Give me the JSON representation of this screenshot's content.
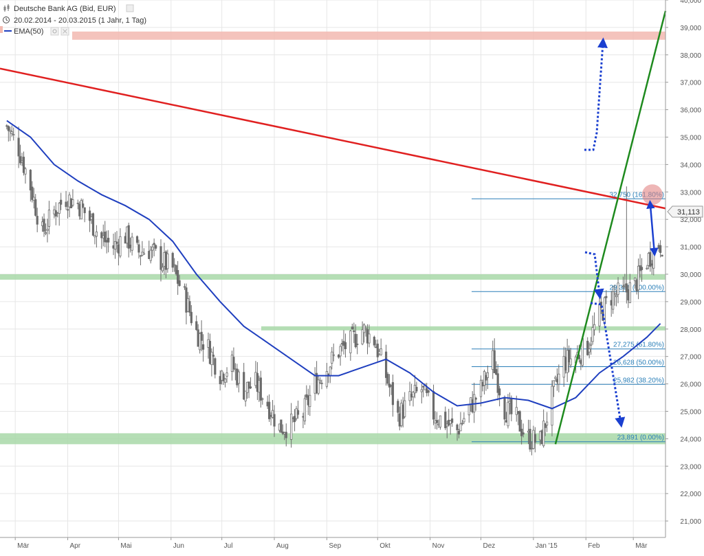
{
  "header": {
    "instrument": "Deutsche Bank AG (Bid, EUR)",
    "range": "20.02.2014 - 20.03.2015 (1 Jahr, 1 Tag)",
    "indicator": "EMA(50)"
  },
  "colors": {
    "candle": "#6b6b6b",
    "ema": "#1f3fbf",
    "resistance": "#e02020",
    "trend": "#1e8a1e",
    "support_zone": "#a8d8a8",
    "top_zone": "#f2b9b0",
    "fib": "#2a7fb8",
    "arrow": "#1a3fd0",
    "grid": "#e6e6e6"
  },
  "last_price_label": "31,113",
  "chart_data": {
    "type": "line",
    "title": "Deutsche Bank AG (Bid, EUR)",
    "xlabel": "",
    "ylabel": "",
    "ylim": [
      20.4,
      40.0
    ],
    "x_ticks": [
      "Mär",
      "Apr",
      "Mai",
      "Jun",
      "Jul",
      "Aug",
      "Sep",
      "Okt",
      "Nov",
      "Dez",
      "Jan '15",
      "Feb",
      "Mär"
    ],
    "y_ticks": [
      "21,000",
      "22,000",
      "23,000",
      "24,000",
      "25,000",
      "26,000",
      "27,000",
      "28,000",
      "29,000",
      "30,000",
      "31,000",
      "32,000",
      "33,000",
      "34,000",
      "35,000",
      "36,000",
      "37,000",
      "38,000",
      "39,000",
      "40,000"
    ],
    "x_range": [
      "2014-02-20",
      "2015-03-20"
    ],
    "price_series": {
      "name": "",
      "x": [
        "2014-02-24",
        "2014-03-03",
        "2014-03-10",
        "2014-03-17",
        "2014-03-24",
        "2014-03-31",
        "2014-04-07",
        "2014-04-14",
        "2014-04-21",
        "2014-04-28",
        "2014-05-05",
        "2014-05-12",
        "2014-05-19",
        "2014-05-26",
        "2014-06-02",
        "2014-06-09",
        "2014-06-16",
        "2014-06-23",
        "2014-06-30",
        "2014-07-07",
        "2014-07-14",
        "2014-07-21",
        "2014-07-28",
        "2014-08-04",
        "2014-08-11",
        "2014-08-18",
        "2014-08-25",
        "2014-09-01",
        "2014-09-08",
        "2014-09-15",
        "2014-09-22",
        "2014-09-29",
        "2014-10-06",
        "2014-10-13",
        "2014-10-20",
        "2014-10-27",
        "2014-11-03",
        "2014-11-10",
        "2014-11-17",
        "2014-11-24",
        "2014-12-01",
        "2014-12-08",
        "2014-12-15",
        "2014-12-22",
        "2014-12-29",
        "2015-01-05",
        "2015-01-12",
        "2015-01-19",
        "2015-01-26",
        "2015-02-02",
        "2015-02-09",
        "2015-02-16",
        "2015-02-23",
        "2015-03-02",
        "2015-03-09",
        "2015-03-16"
      ],
      "values": [
        35.4,
        34.6,
        33.2,
        31.5,
        32.3,
        32.8,
        32.6,
        32.0,
        31.3,
        31.0,
        31.4,
        30.8,
        30.9,
        30.5,
        30.2,
        29.2,
        27.9,
        27.3,
        26.4,
        26.7,
        25.8,
        26.0,
        25.3,
        24.4,
        24.5,
        24.9,
        26.0,
        26.6,
        27.2,
        27.5,
        28.0,
        27.6,
        26.3,
        24.8,
        25.4,
        25.8,
        24.9,
        24.6,
        24.3,
        25.1,
        25.8,
        26.9,
        25.1,
        24.7,
        24.0,
        23.9,
        25.5,
        26.8,
        27.0,
        27.4,
        28.5,
        29.2,
        29.3,
        29.6,
        30.5,
        31.1
      ]
    },
    "ema_series": {
      "name": "EMA(50)",
      "x": [
        "2014-02-24",
        "2014-03-10",
        "2014-03-24",
        "2014-04-07",
        "2014-04-21",
        "2014-05-05",
        "2014-05-19",
        "2014-06-02",
        "2014-06-16",
        "2014-06-30",
        "2014-07-14",
        "2014-07-28",
        "2014-08-11",
        "2014-08-25",
        "2014-09-08",
        "2014-09-22",
        "2014-10-06",
        "2014-10-20",
        "2014-11-03",
        "2014-11-17",
        "2014-12-01",
        "2014-12-15",
        "2014-12-29",
        "2015-01-12",
        "2015-01-26",
        "2015-02-09",
        "2015-02-23",
        "2015-03-09",
        "2015-03-17"
      ],
      "values": [
        35.6,
        35.0,
        34.0,
        33.4,
        32.9,
        32.5,
        32.0,
        31.2,
        30.0,
        29.0,
        28.1,
        27.5,
        26.9,
        26.3,
        26.3,
        26.6,
        26.9,
        26.4,
        25.7,
        25.2,
        25.3,
        25.5,
        25.4,
        25.1,
        25.5,
        26.4,
        27.0,
        27.7,
        28.2
      ]
    },
    "resistance_line": {
      "x": [
        "2014-02-20",
        "2015-03-20"
      ],
      "values": [
        37.5,
        32.4
      ]
    },
    "trend_line": {
      "x": [
        "2015-01-14",
        "2015-03-20"
      ],
      "values": [
        23.8,
        39.6
      ]
    },
    "horizontal_zones": [
      {
        "kind": "top",
        "from": 38.55,
        "to": 38.85
      },
      {
        "kind": "support",
        "from": 29.8,
        "to": 30.0
      },
      {
        "kind": "support",
        "from": 27.95,
        "to": 28.1
      },
      {
        "kind": "support",
        "from": 23.8,
        "to": 24.2
      }
    ],
    "fibonacci_levels": [
      {
        "value": 32.75,
        "label": "32,750 (161.80%)"
      },
      {
        "value": 29.366,
        "label": "29,366 (100.00%)"
      },
      {
        "value": 27.275,
        "label": "27,275 (61.80%)"
      },
      {
        "value": 26.628,
        "label": "26,628 (50.00%)"
      },
      {
        "value": 25.982,
        "label": "25,982 (38.20%)"
      },
      {
        "value": 23.891,
        "label": "23,891 (0.00%)"
      }
    ],
    "last_price": 31.113,
    "spike_high": {
      "x": "2015-02-25",
      "value": 33.2
    }
  }
}
